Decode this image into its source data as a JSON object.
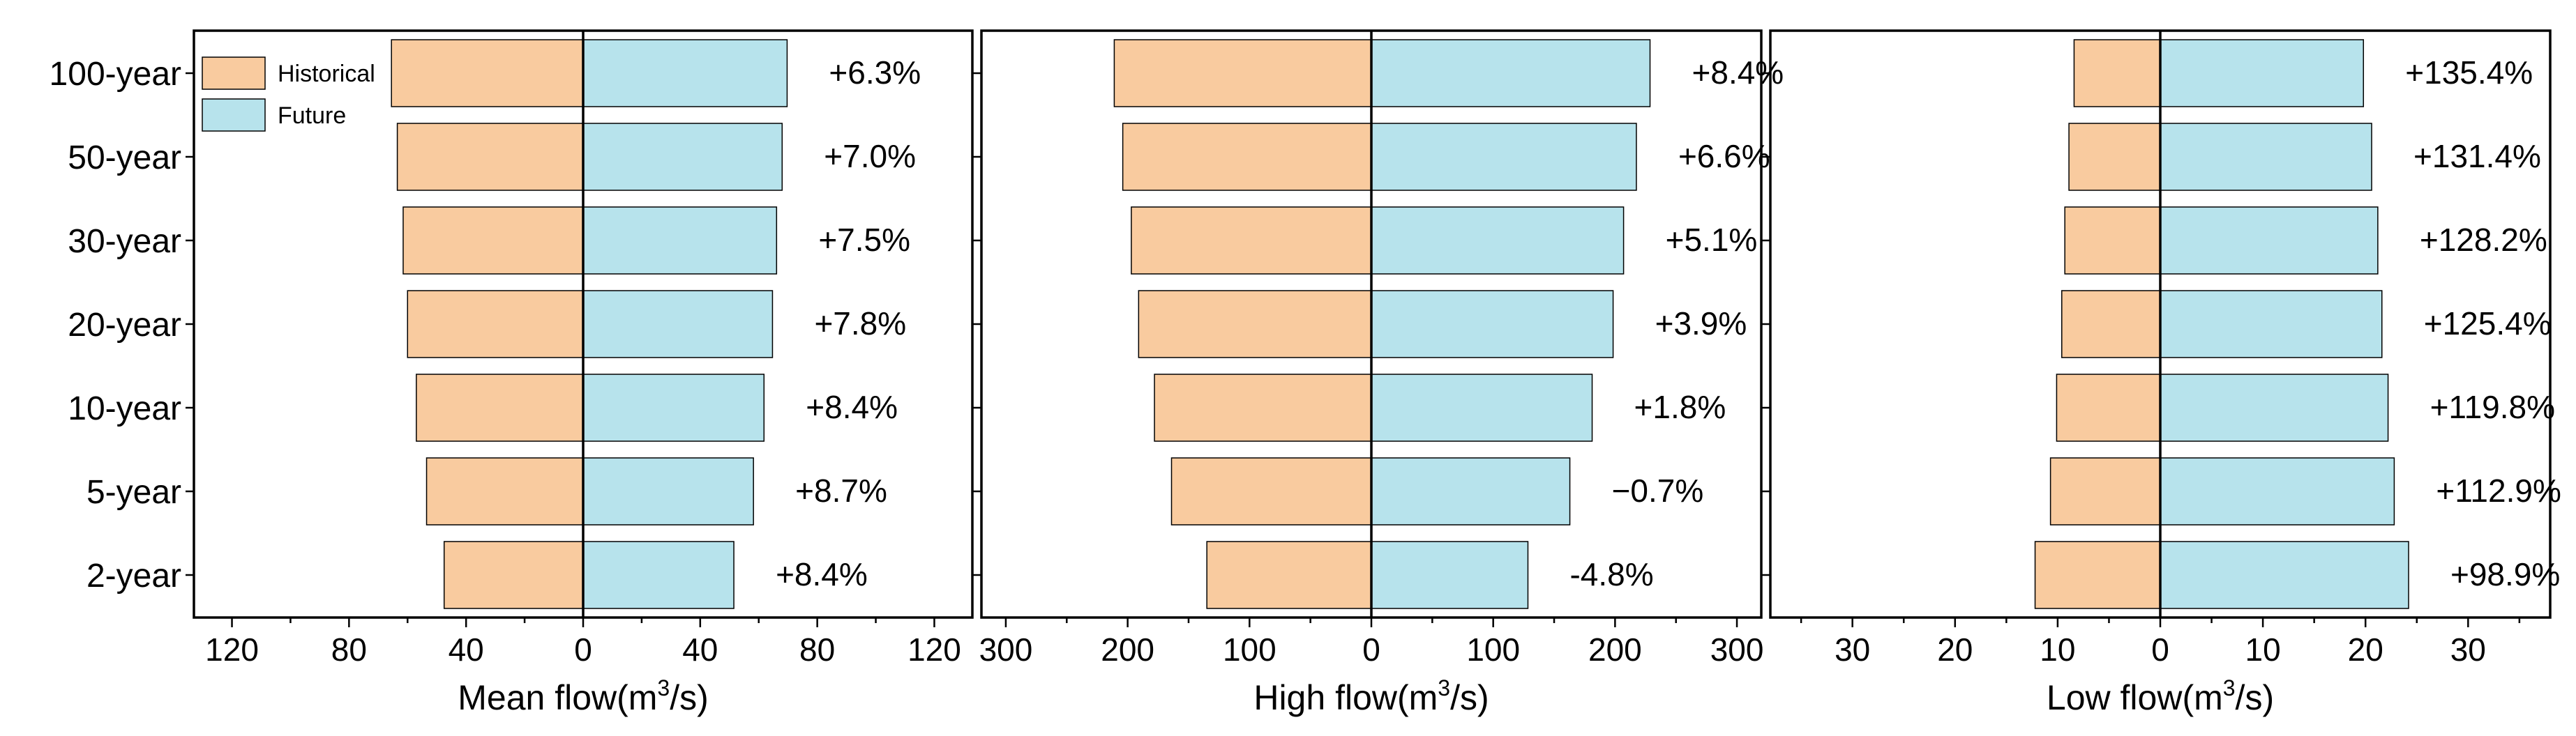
{
  "chart_data": [
    {
      "type": "bar",
      "orientation": "horizontal-butterfly",
      "panel": "mean",
      "categories": [
        "100-year",
        "50-year",
        "30-year",
        "20-year",
        "10-year",
        "5-year",
        "2-year"
      ],
      "series": [
        {
          "name": "Historical",
          "values": [
            65.5,
            63.5,
            61.5,
            60.0,
            57.0,
            53.5,
            47.5
          ]
        },
        {
          "name": "Future",
          "values": [
            69.7,
            68.0,
            66.1,
            64.7,
            61.8,
            58.2,
            51.5
          ]
        }
      ],
      "change_labels": [
        "+6.3%",
        "+7.0%",
        "+7.5%",
        "+7.8%",
        "+8.4%",
        "+8.7%",
        "+8.4%"
      ],
      "xlabel_main": "Mean flow(m",
      "xlabel_sup": "3",
      "xlabel_tail": "/s)",
      "xlim": [
        -133,
        133
      ],
      "ticks": [
        -120,
        -80,
        -40,
        0,
        40,
        80,
        120
      ],
      "tick_labels": [
        "120",
        "80",
        "40",
        "0",
        "40",
        "80",
        "120"
      ],
      "legend": {
        "placement": "top-left",
        "entries": [
          "Historical",
          "Future"
        ]
      }
    },
    {
      "type": "bar",
      "orientation": "horizontal-butterfly",
      "panel": "high",
      "categories": [
        "100-year",
        "50-year",
        "30-year",
        "20-year",
        "10-year",
        "5-year",
        "2-year"
      ],
      "series": [
        {
          "name": "Historical",
          "values": [
            211,
            204,
            197,
            191,
            178,
            164,
            135
          ]
        },
        {
          "name": "Future",
          "values": [
            228.7,
            217.5,
            207.0,
            198.4,
            181.2,
            162.9,
            128.5
          ]
        }
      ],
      "change_labels": [
        "+8.4%",
        "+6.6%",
        "+5.1%",
        "+3.9%",
        "+1.8%",
        "−0.7%",
        "-4.8%"
      ],
      "xlabel_main": "High flow(m",
      "xlabel_sup": "3",
      "xlabel_tail": "/s)",
      "xlim": [
        -320,
        320
      ],
      "ticks": [
        -300,
        -200,
        -100,
        0,
        100,
        200,
        300
      ],
      "tick_labels": [
        "300",
        "200",
        "100",
        "0",
        "100",
        "200",
        "300"
      ]
    },
    {
      "type": "bar",
      "orientation": "horizontal-butterfly",
      "panel": "low",
      "categories": [
        "100-year",
        "50-year",
        "30-year",
        "20-year",
        "10-year",
        "5-year",
        "2-year"
      ],
      "series": [
        {
          "name": "Historical",
          "values": [
            8.4,
            8.9,
            9.3,
            9.6,
            10.1,
            10.7,
            12.2
          ]
        },
        {
          "name": "Future",
          "values": [
            19.8,
            20.6,
            21.2,
            21.6,
            22.2,
            22.8,
            24.2
          ]
        }
      ],
      "change_labels": [
        "+135.4%",
        "+131.4%",
        "+128.2%",
        "+125.4%",
        "+119.8%",
        "+112.9%",
        "+98.9%"
      ],
      "xlabel_main": "Low flow(m",
      "xlabel_sup": "3",
      "xlabel_tail": "/s)",
      "xlim": [
        -38,
        38
      ],
      "ticks": [
        -30,
        -20,
        -10,
        0,
        10,
        20,
        30
      ],
      "tick_labels": [
        "30",
        "20",
        "10",
        "0",
        "10",
        "20",
        "30"
      ]
    }
  ],
  "colors": {
    "historical": "#f9cb9f",
    "future": "#b7e3ec",
    "outline": "#000000"
  }
}
